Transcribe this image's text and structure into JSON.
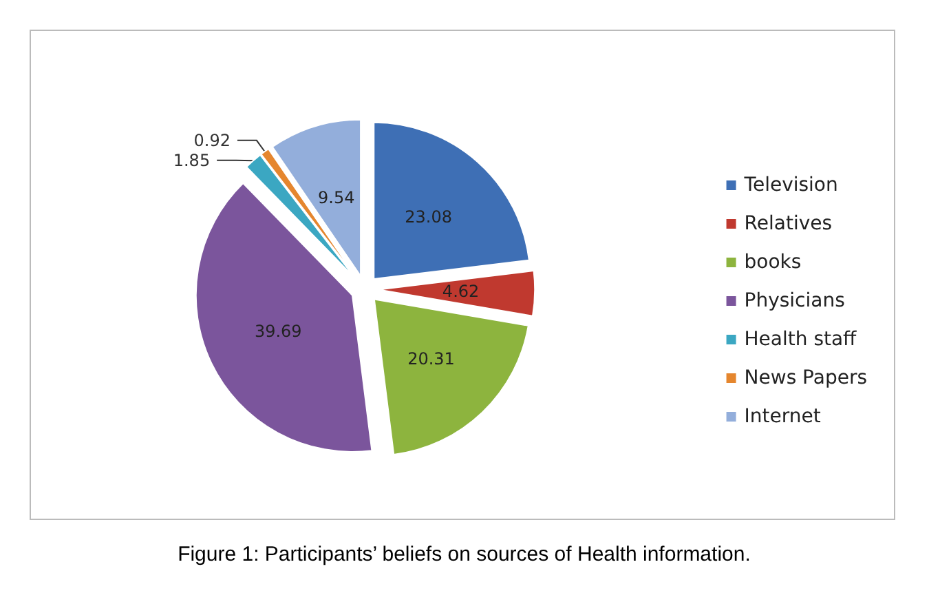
{
  "chart_data": {
    "type": "pie",
    "categories": [
      "Television",
      "Relatives",
      "books",
      "Physicians",
      "Health staff",
      "News Papers",
      "Internet"
    ],
    "values": [
      23.08,
      4.62,
      20.31,
      39.69,
      1.85,
      0.92,
      9.54
    ],
    "colors": [
      "#3e6fb5",
      "#c0392f",
      "#8db43e",
      "#7b559c",
      "#3ba7c2",
      "#e5862e",
      "#93aedb"
    ],
    "data_labels": true,
    "legend": "right",
    "annotations": [
      "Figure 1: Participants’ beliefs on sources of Health information."
    ]
  }
}
